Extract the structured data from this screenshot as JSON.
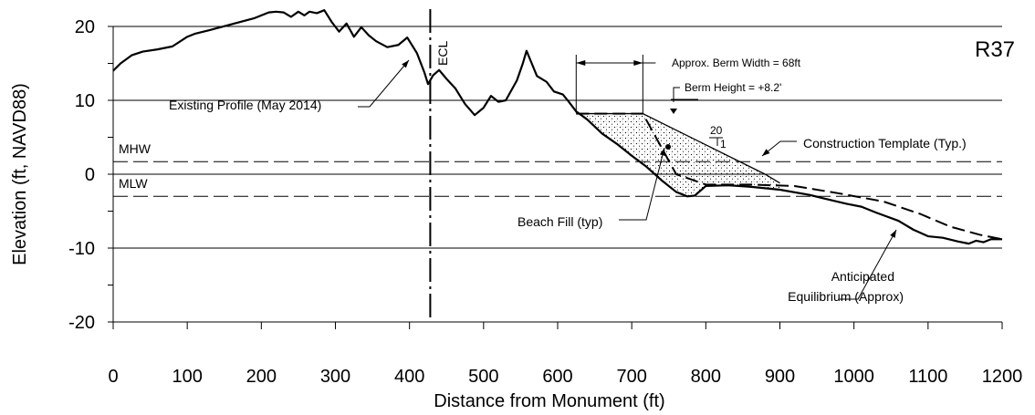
{
  "chart_data": {
    "type": "line",
    "title": "",
    "profile_label": "R37",
    "xlabel": "Distance from Monument (ft)",
    "ylabel": "Elevation (ft, NAVD88)",
    "xlim": [
      0,
      1200
    ],
    "ylim": [
      -20,
      20
    ],
    "x_ticks": [
      0,
      100,
      200,
      300,
      400,
      500,
      600,
      700,
      800,
      900,
      1000,
      1100,
      1200
    ],
    "y_ticks": [
      -20,
      -10,
      0,
      10,
      20
    ],
    "y_minor_ticks": [
      -15,
      -5,
      5,
      15
    ],
    "reference_lines": [
      {
        "name": "MHW",
        "y": 1.7,
        "style": "dashed"
      },
      {
        "name": "MLW",
        "y": -3.0,
        "style": "dashed"
      },
      {
        "name": "ECL",
        "x": 428,
        "style": "dash-dot"
      }
    ],
    "series": [
      {
        "name": "Existing Profile (May 2014)",
        "style": "solid",
        "points": [
          [
            0,
            14
          ],
          [
            10,
            15
          ],
          [
            25,
            16.1
          ],
          [
            40,
            16.6
          ],
          [
            60,
            16.9
          ],
          [
            80,
            17.3
          ],
          [
            100,
            18.6
          ],
          [
            110,
            19.0
          ],
          [
            130,
            19.5
          ],
          [
            160,
            20.3
          ],
          [
            190,
            21.1
          ],
          [
            210,
            21.9
          ],
          [
            220,
            22.0
          ],
          [
            230,
            21.9
          ],
          [
            240,
            21.3
          ],
          [
            250,
            22.0
          ],
          [
            258,
            21.5
          ],
          [
            265,
            22.0
          ],
          [
            275,
            21.8
          ],
          [
            285,
            22.2
          ],
          [
            295,
            20.6
          ],
          [
            305,
            19.3
          ],
          [
            315,
            20.4
          ],
          [
            325,
            18.6
          ],
          [
            335,
            19.9
          ],
          [
            345,
            18.8
          ],
          [
            355,
            18.0
          ],
          [
            370,
            17.2
          ],
          [
            385,
            17.5
          ],
          [
            397,
            18.5
          ],
          [
            410,
            16.4
          ],
          [
            420,
            13.8
          ],
          [
            425,
            12.2
          ],
          [
            432,
            13.4
          ],
          [
            440,
            14.1
          ],
          [
            450,
            12.9
          ],
          [
            462,
            11.6
          ],
          [
            475,
            9.5
          ],
          [
            488,
            8.0
          ],
          [
            500,
            9.0
          ],
          [
            510,
            10.6
          ],
          [
            520,
            9.8
          ],
          [
            530,
            10.0
          ],
          [
            545,
            12.7
          ],
          [
            553,
            15.0
          ],
          [
            558,
            16.7
          ],
          [
            565,
            15.0
          ],
          [
            572,
            13.3
          ],
          [
            585,
            12.5
          ],
          [
            595,
            11.2
          ],
          [
            607,
            10.8
          ],
          [
            615,
            9.8
          ],
          [
            625,
            8.5
          ],
          [
            640,
            7.4
          ],
          [
            660,
            5.5
          ],
          [
            680,
            4.1
          ],
          [
            700,
            2.5
          ],
          [
            720,
            1.0
          ],
          [
            740,
            -0.8
          ],
          [
            760,
            -2.4
          ],
          [
            775,
            -3.0
          ],
          [
            785,
            -2.9
          ],
          [
            800,
            -1.6
          ],
          [
            830,
            -1.5
          ],
          [
            860,
            -1.7
          ],
          [
            900,
            -2.1
          ],
          [
            940,
            -2.8
          ],
          [
            960,
            -3.3
          ],
          [
            990,
            -4.0
          ],
          [
            1010,
            -4.4
          ],
          [
            1030,
            -5.2
          ],
          [
            1060,
            -6.3
          ],
          [
            1080,
            -7.5
          ],
          [
            1100,
            -8.4
          ],
          [
            1120,
            -8.6
          ],
          [
            1140,
            -9.1
          ],
          [
            1155,
            -9.4
          ],
          [
            1165,
            -9.0
          ],
          [
            1175,
            -9.2
          ],
          [
            1185,
            -8.8
          ],
          [
            1200,
            -8.8
          ]
        ]
      },
      {
        "name": "Construction Template (Typ.)",
        "style": "solid",
        "points": [
          [
            625,
            8.2
          ],
          [
            715,
            8.2
          ],
          [
            880,
            0.0
          ],
          [
            900,
            -1.2
          ]
        ]
      },
      {
        "name": "Anticipated Equilibrium (Approx)",
        "style": "dashed",
        "points": [
          [
            625,
            8.2
          ],
          [
            715,
            8.2
          ],
          [
            760,
            0.0
          ],
          [
            800,
            -1.4
          ],
          [
            860,
            -1.4
          ],
          [
            920,
            -1.6
          ],
          [
            980,
            -2.6
          ],
          [
            1040,
            -3.7
          ],
          [
            1090,
            -5.4
          ],
          [
            1130,
            -7.1
          ],
          [
            1170,
            -8.2
          ],
          [
            1200,
            -8.8
          ]
        ]
      }
    ],
    "annotations": {
      "ecl": "ECL",
      "mhw": "MHW",
      "mlw": "MLW",
      "existing_profile": "Existing Profile (May 2014)",
      "berm_width": "Approx. Berm Width = 68ft",
      "berm_height": "Berm Height = +8.2'",
      "slope_run": "20",
      "slope_rise": "1",
      "construction_template": "Construction Template (Typ.)",
      "beach_fill": "Beach Fill (typ)",
      "equilibrium_line1": "Anticipated",
      "equilibrium_line2": "Equilibrium (Approx)"
    }
  }
}
